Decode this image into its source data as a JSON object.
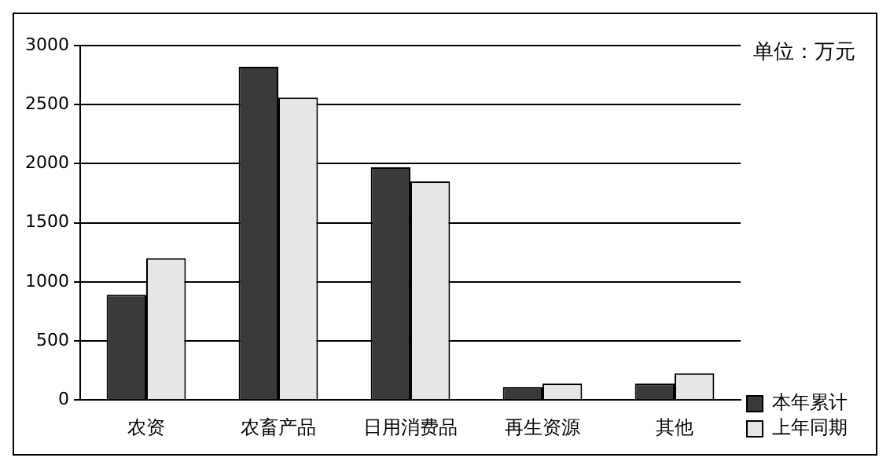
{
  "chart_data": {
    "type": "bar",
    "categories": [
      "农资",
      "农畜产品",
      "日用消费品",
      "再生资源",
      "其他"
    ],
    "series": [
      {
        "name": "本年累计",
        "color": "#3a3a3a",
        "values": [
          890,
          2820,
          1970,
          110,
          140
        ]
      },
      {
        "name": "上年同期",
        "color": "#e6e6e6",
        "values": [
          1200,
          2560,
          1850,
          140,
          225
        ]
      }
    ],
    "ylim": [
      0,
      3000
    ],
    "yticks": [
      0,
      500,
      1000,
      1500,
      2000,
      2500,
      3000
    ],
    "grid": "y",
    "legend": "bottom right",
    "annotations": [
      "单位：万元"
    ]
  }
}
